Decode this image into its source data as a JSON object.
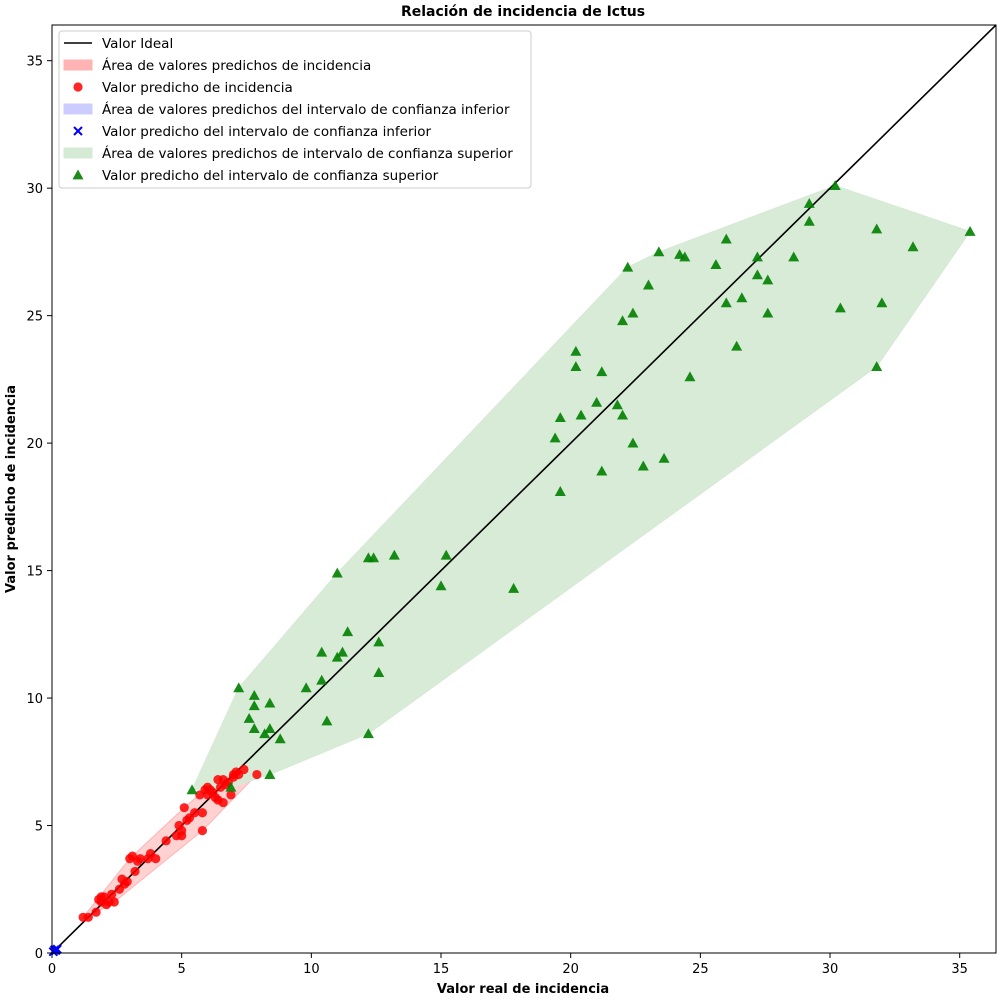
{
  "chart_data": {
    "type": "scatter",
    "title": "Relación de incidencia de Ictus",
    "xlabel": "Valor real de incidencia",
    "ylabel": "Valor predicho de incidencia",
    "xlim": [
      0,
      36.4
    ],
    "ylim": [
      0,
      36.4
    ],
    "xticks": [
      0,
      5,
      10,
      15,
      20,
      25,
      30,
      35
    ],
    "yticks": [
      0,
      5,
      10,
      15,
      20,
      25,
      30,
      35
    ],
    "grid": false,
    "legend_position": "upper-left",
    "ideal_line": {
      "name": "Valor Ideal",
      "color": "#000000",
      "x": [
        0,
        36.4
      ],
      "y": [
        0,
        36.4
      ]
    },
    "series": [
      {
        "name": "Valor predicho de incidencia",
        "area_name": "Área de valores predichos de incidencia",
        "marker": "circle",
        "color": "#ff0000",
        "area_color": "#ffb3b3",
        "x": [
          1.2,
          1.4,
          1.7,
          1.8,
          1.9,
          1.9,
          2.0,
          2.1,
          2.2,
          2.3,
          2.4,
          2.6,
          2.7,
          2.8,
          2.9,
          3.0,
          3.1,
          3.2,
          3.3,
          3.4,
          3.7,
          3.8,
          4.0,
          4.4,
          4.8,
          4.9,
          5.0,
          5.0,
          5.1,
          5.2,
          5.3,
          5.5,
          5.7,
          5.8,
          5.8,
          5.9,
          6.0,
          6.0,
          6.1,
          6.2,
          6.3,
          6.4,
          6.4,
          6.5,
          6.6,
          6.6,
          6.7,
          6.8,
          6.9,
          7.0,
          7.0,
          7.1,
          7.2,
          7.4,
          7.9
        ],
        "y": [
          1.4,
          1.4,
          1.6,
          2.1,
          2.2,
          2.0,
          2.2,
          1.9,
          2.0,
          2.3,
          2.0,
          2.5,
          2.9,
          2.7,
          2.8,
          3.7,
          3.8,
          3.2,
          3.6,
          3.7,
          3.7,
          3.9,
          3.7,
          4.4,
          4.6,
          5.0,
          4.8,
          4.6,
          5.7,
          5.2,
          5.3,
          5.5,
          6.2,
          5.5,
          4.8,
          6.4,
          6.5,
          6.2,
          6.4,
          6.3,
          6.1,
          6.0,
          6.8,
          6.5,
          5.9,
          6.8,
          6.6,
          6.7,
          6.2,
          6.9,
          7.0,
          7.1,
          7.0,
          7.2,
          7.0
        ]
      },
      {
        "name": "Valor predicho del intervalo de confianza inferior",
        "area_name": "Área de valores predichos del intervalo de confianza inferior",
        "marker": "x",
        "color": "#0000ff",
        "area_color": "#ccccff",
        "x": [
          0.05,
          0.1,
          0.15,
          0.2
        ],
        "y": [
          0.05,
          0.12,
          0.1,
          0.15
        ]
      },
      {
        "name": "Valor predicho del intervalo de confianza superior",
        "area_name": "Área de valores predichos de intervalo de confianza superior",
        "marker": "triangle",
        "color": "#008000",
        "area_color": "#d5ead5",
        "x": [
          5.4,
          6.9,
          7.2,
          7.6,
          7.8,
          7.8,
          7.8,
          8.2,
          8.4,
          8.4,
          8.4,
          8.8,
          9.8,
          10.4,
          10.4,
          10.6,
          11.0,
          11.0,
          11.2,
          11.4,
          12.2,
          12.2,
          12.4,
          12.6,
          12.6,
          13.2,
          15.0,
          15.2,
          17.8,
          19.4,
          19.6,
          19.6,
          20.2,
          20.2,
          20.4,
          21.0,
          21.2,
          21.2,
          21.8,
          22.0,
          22.0,
          22.2,
          22.4,
          22.4,
          22.8,
          23.0,
          23.4,
          23.6,
          24.2,
          24.4,
          24.6,
          25.6,
          26.0,
          26.0,
          26.4,
          26.6,
          27.2,
          27.2,
          27.6,
          27.6,
          28.6,
          29.2,
          29.2,
          30.2,
          30.4,
          31.8,
          31.8,
          32.0,
          33.2,
          35.4
        ],
        "y": [
          6.4,
          6.5,
          10.4,
          9.2,
          10.1,
          9.7,
          8.8,
          8.6,
          9.8,
          8.8,
          7.0,
          8.4,
          10.4,
          11.8,
          10.7,
          9.1,
          14.9,
          11.6,
          11.8,
          12.6,
          8.6,
          15.5,
          15.5,
          12.2,
          11.0,
          15.6,
          14.4,
          15.6,
          14.3,
          20.2,
          21.0,
          18.1,
          23.6,
          23.0,
          21.1,
          21.6,
          22.8,
          18.9,
          21.5,
          21.1,
          24.8,
          26.9,
          25.1,
          20.0,
          19.1,
          26.2,
          27.5,
          19.4,
          27.4,
          27.3,
          22.6,
          27.0,
          25.5,
          28.0,
          23.8,
          25.7,
          27.3,
          26.6,
          26.4,
          25.1,
          27.3,
          29.4,
          28.7,
          30.1,
          25.3,
          28.4,
          23.0,
          25.5,
          27.7,
          28.3
        ]
      }
    ]
  }
}
